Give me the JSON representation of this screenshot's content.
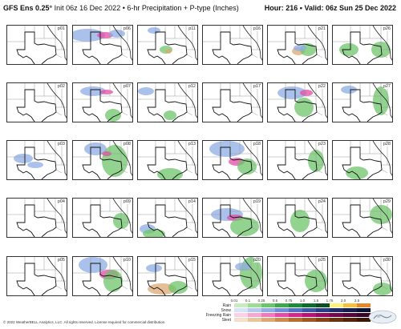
{
  "header": {
    "model": "GFS Ens 0.25°",
    "init": "Init 06z 16 Dec 2022",
    "separator": "•",
    "product": "6-hr Precipitation + P-type (Inches)",
    "hour_label": "Hour: 216",
    "valid_label": "Valid: 06z Sun 25 Dec 2022"
  },
  "panels": [
    "p01",
    "p06",
    "p11",
    "p16",
    "p21",
    "p26",
    "p02",
    "p07",
    "p12",
    "p17",
    "p22",
    "p27",
    "p03",
    "p08",
    "p13",
    "p18",
    "p23",
    "p28",
    "p04",
    "p09",
    "p14",
    "p19",
    "p24",
    "p29",
    "p05",
    "p10",
    "p15",
    "p20",
    "p25",
    "p30"
  ],
  "legend": {
    "ticks": [
      "0.01",
      "0.1",
      "0.25",
      "0.5",
      "0.75",
      "1.0",
      "1.5",
      "1.75",
      "2.0",
      "2.5"
    ],
    "rows": [
      {
        "name": "Rain",
        "colors": [
          "#c8ecc0",
          "#9ddc93",
          "#6cc46a",
          "#3fa64a",
          "#1f8a38",
          "#0f6b2c",
          "#0b4f22",
          "#fff27a",
          "#f6c040",
          "#e58a2b"
        ]
      },
      {
        "name": "Snow",
        "colors": [
          "#d6e4f7",
          "#b3c9ee",
          "#8eaee4",
          "#6d90d8",
          "#4e72c6",
          "#3956a8",
          "#283f88",
          "#1d2d6a",
          "#15204f",
          "#0c1433"
        ]
      },
      {
        "name": "Freezing Rain",
        "colors": [
          "#fbd0e8",
          "#f6a6d4",
          "#ef78be",
          "#e54aa6",
          "#d6268f",
          "#b8127a",
          "#960a63",
          "#740650",
          "#56043c",
          "#3a0228"
        ]
      },
      {
        "name": "Sleet",
        "colors": [
          "#f3e0c8",
          "#e9c59c",
          "#dca874",
          "#cc8a4e",
          "#b96e30",
          "#a05620",
          "#854214",
          "#6b310c",
          "#522306",
          "#3a1603"
        ]
      }
    ]
  },
  "colors": {
    "rain": "#6cc46a",
    "snow": "#8eaee4",
    "freezing_rain": "#e54aa6",
    "sleet": "#dca874"
  },
  "copyright": "© 2022 WeatherBELL Analytics, LLC. All rights reserved. License required for commercial distribution.",
  "logo_icon": "weatherbell-logo-icon"
}
